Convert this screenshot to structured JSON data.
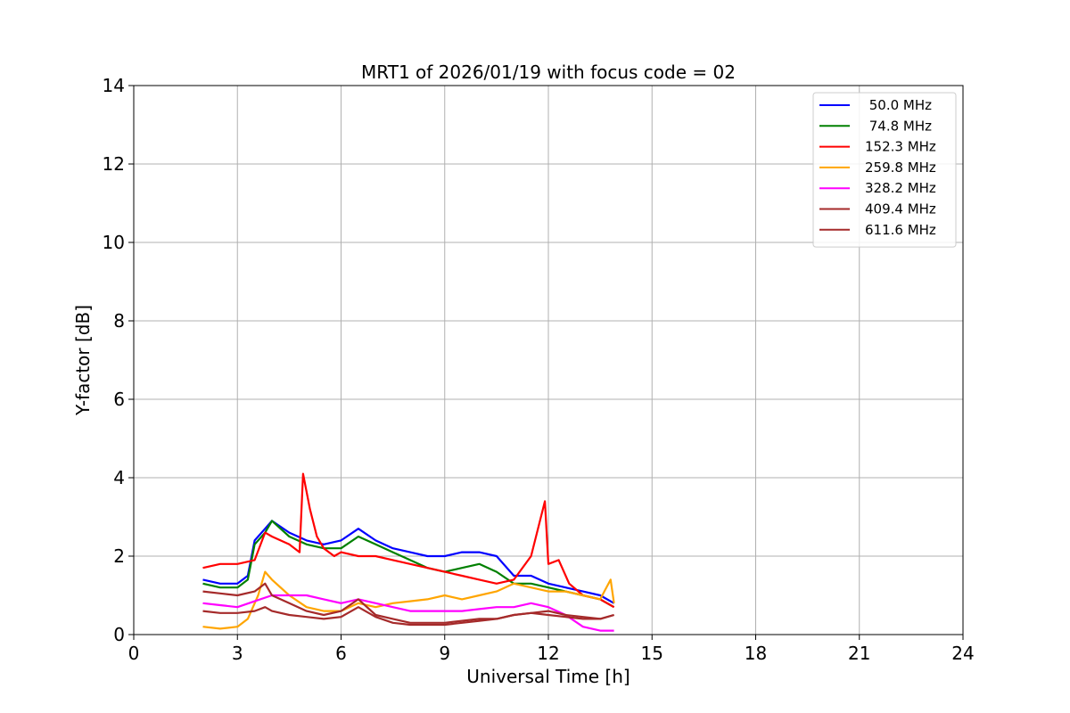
{
  "chart_data": {
    "type": "line",
    "title": "MRT1 of 2026/01/19 with focus code = 02",
    "xlabel": "Universal Time [h]",
    "ylabel": "Y-factor [dB]",
    "xlim": [
      0,
      24
    ],
    "ylim": [
      0,
      14
    ],
    "xticks": [
      0,
      3,
      6,
      9,
      12,
      15,
      18,
      21,
      24
    ],
    "yticks": [
      0,
      2,
      4,
      6,
      8,
      10,
      12,
      14
    ],
    "grid": true,
    "legend_position": "top-right",
    "series": [
      {
        "name": " 50.0 MHz",
        "color": "#0000ff",
        "x": [
          2.0,
          2.5,
          3.0,
          3.3,
          3.5,
          3.8,
          4.0,
          4.5,
          5.0,
          5.5,
          6.0,
          6.5,
          7.0,
          7.5,
          8.0,
          8.5,
          9.0,
          9.5,
          10.0,
          10.5,
          11.0,
          11.5,
          12.0,
          12.5,
          13.0,
          13.5,
          13.9
        ],
        "y": [
          1.4,
          1.3,
          1.3,
          1.5,
          2.4,
          2.7,
          2.9,
          2.6,
          2.4,
          2.3,
          2.4,
          2.7,
          2.4,
          2.2,
          2.1,
          2.0,
          2.0,
          2.1,
          2.1,
          2.0,
          1.5,
          1.5,
          1.3,
          1.2,
          1.1,
          1.0,
          0.8
        ]
      },
      {
        "name": " 74.8 MHz",
        "color": "#008000",
        "x": [
          2.0,
          2.5,
          3.0,
          3.3,
          3.5,
          3.8,
          4.0,
          4.5,
          5.0,
          5.5,
          6.0,
          6.5,
          7.0,
          7.5,
          8.0,
          8.5,
          9.0,
          9.5,
          10.0,
          10.5,
          11.0,
          11.5,
          12.0,
          12.5,
          13.0,
          13.5,
          13.9
        ],
        "y": [
          1.3,
          1.2,
          1.2,
          1.4,
          2.3,
          2.6,
          2.9,
          2.5,
          2.3,
          2.2,
          2.2,
          2.5,
          2.3,
          2.1,
          1.9,
          1.7,
          1.6,
          1.7,
          1.8,
          1.6,
          1.3,
          1.3,
          1.2,
          1.1,
          1.0,
          0.9,
          0.7
        ]
      },
      {
        "name": "152.3 MHz",
        "color": "#ff0000",
        "x": [
          2.0,
          2.5,
          2.9,
          3.0,
          3.5,
          3.8,
          4.0,
          4.5,
          4.8,
          4.9,
          5.1,
          5.3,
          5.5,
          5.8,
          6.0,
          6.5,
          7.0,
          7.5,
          8.0,
          8.5,
          9.0,
          9.5,
          10.0,
          10.5,
          11.0,
          11.5,
          11.9,
          12.0,
          12.3,
          12.6,
          13.0,
          13.5,
          13.9
        ],
        "y": [
          1.7,
          1.8,
          1.8,
          1.8,
          1.9,
          2.6,
          2.5,
          2.3,
          2.1,
          4.1,
          3.2,
          2.5,
          2.2,
          2.0,
          2.1,
          2.0,
          2.0,
          1.9,
          1.8,
          1.7,
          1.6,
          1.5,
          1.4,
          1.3,
          1.4,
          2.0,
          3.4,
          1.8,
          1.9,
          1.3,
          1.0,
          0.9,
          0.7
        ]
      },
      {
        "name": "259.8 MHz",
        "color": "#ffa500",
        "x": [
          2.0,
          2.5,
          3.0,
          3.3,
          3.6,
          3.8,
          4.0,
          4.5,
          5.0,
          5.5,
          6.0,
          6.5,
          7.0,
          7.5,
          8.0,
          8.5,
          9.0,
          9.5,
          10.0,
          10.5,
          11.0,
          11.5,
          12.0,
          12.5,
          13.0,
          13.5,
          13.8,
          13.9
        ],
        "y": [
          0.2,
          0.15,
          0.2,
          0.4,
          1.0,
          1.6,
          1.4,
          1.0,
          0.7,
          0.6,
          0.6,
          0.8,
          0.7,
          0.8,
          0.85,
          0.9,
          1.0,
          0.9,
          1.0,
          1.1,
          1.3,
          1.2,
          1.1,
          1.1,
          1.0,
          0.9,
          1.4,
          0.8
        ]
      },
      {
        "name": "328.2 MHz",
        "color": "#ff00ff",
        "x": [
          2.0,
          2.5,
          3.0,
          3.5,
          4.0,
          4.5,
          5.0,
          5.5,
          6.0,
          6.5,
          7.0,
          7.5,
          8.0,
          8.5,
          9.0,
          9.5,
          10.0,
          10.5,
          11.0,
          11.5,
          12.0,
          12.5,
          13.0,
          13.5,
          13.9
        ],
        "y": [
          0.8,
          0.75,
          0.7,
          0.85,
          1.0,
          1.0,
          1.0,
          0.9,
          0.8,
          0.9,
          0.8,
          0.7,
          0.6,
          0.6,
          0.6,
          0.6,
          0.65,
          0.7,
          0.7,
          0.8,
          0.7,
          0.5,
          0.2,
          0.1,
          0.1
        ]
      },
      {
        "name": "409.4 MHz",
        "color": "#a52a2a",
        "x": [
          2.0,
          2.5,
          3.0,
          3.5,
          3.8,
          4.0,
          4.5,
          5.0,
          5.5,
          6.0,
          6.5,
          7.0,
          7.5,
          8.0,
          8.5,
          9.0,
          9.5,
          10.0,
          10.5,
          11.0,
          11.5,
          12.0,
          12.5,
          13.0,
          13.5,
          13.9
        ],
        "y": [
          1.1,
          1.05,
          1.0,
          1.1,
          1.3,
          1.0,
          0.8,
          0.6,
          0.5,
          0.6,
          0.9,
          0.5,
          0.4,
          0.3,
          0.3,
          0.3,
          0.35,
          0.4,
          0.4,
          0.5,
          0.55,
          0.5,
          0.45,
          0.4,
          0.4,
          0.5
        ]
      },
      {
        "name": "611.6 MHz",
        "color": "#a52a2a",
        "x": [
          2.0,
          2.5,
          3.0,
          3.5,
          3.8,
          4.0,
          4.5,
          5.0,
          5.5,
          6.0,
          6.5,
          7.0,
          7.5,
          8.0,
          8.5,
          9.0,
          9.5,
          10.0,
          10.5,
          11.0,
          11.5,
          12.0,
          12.5,
          13.0,
          13.5,
          13.9
        ],
        "y": [
          0.6,
          0.55,
          0.55,
          0.6,
          0.7,
          0.6,
          0.5,
          0.45,
          0.4,
          0.45,
          0.7,
          0.45,
          0.3,
          0.25,
          0.25,
          0.25,
          0.3,
          0.35,
          0.4,
          0.5,
          0.55,
          0.6,
          0.5,
          0.45,
          0.4,
          0.5
        ]
      }
    ]
  }
}
